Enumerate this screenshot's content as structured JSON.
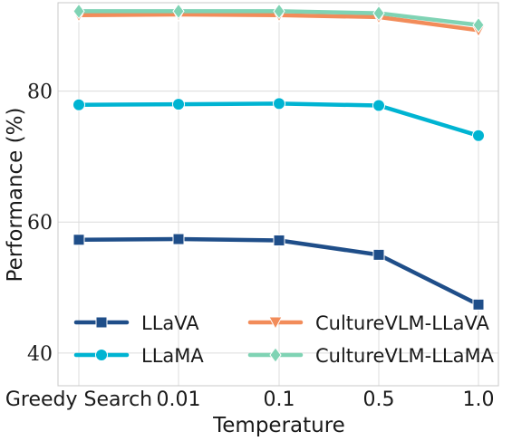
{
  "chart_data": {
    "type": "line",
    "title": "",
    "xlabel": "Temperature",
    "ylabel": "Performance (%)",
    "categories": [
      "Greedy Search",
      "0.01",
      "0.1",
      "0.5",
      "1.0"
    ],
    "yticks": [
      40,
      60,
      80
    ],
    "ylim": [
      35,
      93.5
    ],
    "grid": true,
    "legend_position": "lower center, two columns",
    "series": [
      {
        "name": "LLaVA",
        "values": [
          57.3,
          57.4,
          57.2,
          55.0,
          47.4
        ],
        "color": "#1f4e89",
        "marker": "square"
      },
      {
        "name": "LLaMA",
        "values": [
          77.9,
          78.0,
          78.1,
          77.8,
          73.2
        ],
        "color": "#00b4d2",
        "marker": "circle"
      },
      {
        "name": "CultureVLM-LLaVA",
        "values": [
          91.6,
          91.7,
          91.6,
          91.3,
          89.3
        ],
        "color": "#f28c5a",
        "marker": "triangle-down"
      },
      {
        "name": "CultureVLM-LLaMA",
        "values": [
          92.2,
          92.2,
          92.2,
          91.9,
          90.1
        ],
        "color": "#7fd3b4",
        "marker": "diamond"
      }
    ]
  }
}
